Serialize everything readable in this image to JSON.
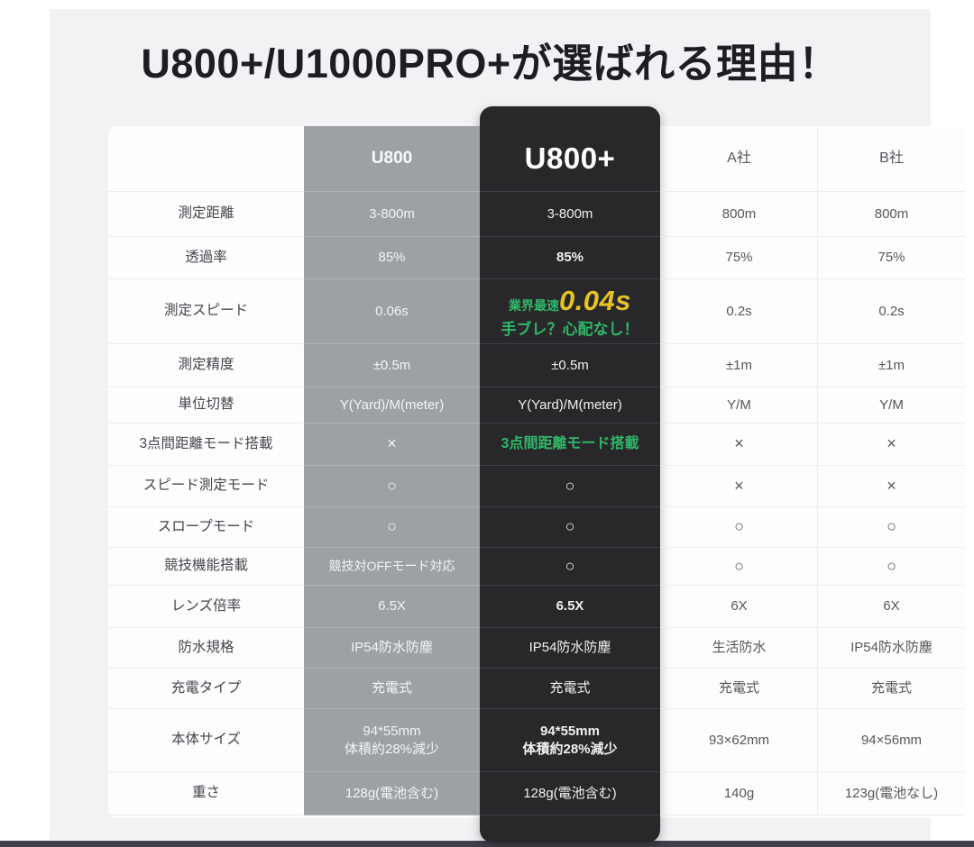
{
  "page": {
    "title": "U800+/U1000PRO+が選ばれる理由！"
  },
  "colors": {
    "accent_green": "#2fb767",
    "accent_yellow": "#e6c324",
    "column_u800_bg": "#9ba1a4",
    "column_u800plus_bg": "#28282b",
    "promo_bg": "#f2f2f5"
  },
  "table": {
    "headers": {
      "u800": "U800",
      "u800plus": "U800+",
      "companyA": "A社",
      "companyB": "B社"
    },
    "rows": [
      {
        "label": "測定距離",
        "u800": "3-800m",
        "u800plus": "3-800m",
        "a": "800m",
        "b": "800m"
      },
      {
        "label": "透過率",
        "u800": "85%",
        "u800plus": "85%",
        "a": "75%",
        "b": "75%"
      },
      {
        "label": "測定スピード",
        "u800": "0.06s",
        "u800plus_prefix": "業界最速",
        "u800plus_value": "0.04s",
        "u800plus_note": "手ブレ？心配なし！",
        "a": "0.2s",
        "b": "0.2s"
      },
      {
        "label": "測定精度",
        "u800": "±0.5m",
        "u800plus": "±0.5m",
        "a": "±1m",
        "b": "±1m"
      },
      {
        "label": "単位切替",
        "u800": "Y(Yard)/M(meter)",
        "u800plus": "Y(Yard)/M(meter)",
        "a": "Y/M",
        "b": "Y/M"
      },
      {
        "label": "3点間距離モード搭載",
        "u800": "×",
        "u800plus": "3点間距離モード搭載",
        "a": "×",
        "b": "×"
      },
      {
        "label": "スピード測定モード",
        "u800": "○",
        "u800plus": "○",
        "a": "×",
        "b": "×"
      },
      {
        "label": "スロープモード",
        "u800": "○",
        "u800plus": "○",
        "a": "○",
        "b": "○"
      },
      {
        "label": "競技機能搭載",
        "u800": "競技対OFFモード対応",
        "u800plus": "○",
        "a": "○",
        "b": "○"
      },
      {
        "label": "レンズ倍率",
        "u800": "6.5X",
        "u800plus": "6.5X",
        "a": "6X",
        "b": "6X"
      },
      {
        "label": "防水規格",
        "u800": "IP54防水防塵",
        "u800plus": "IP54防水防塵",
        "a": "生活防水",
        "b": "IP54防水防塵"
      },
      {
        "label": "充電タイプ",
        "u800": "充電式",
        "u800plus": "充電式",
        "a": "充電式",
        "b": "充電式"
      },
      {
        "label": "本体サイズ",
        "u800_line1": "94*55mm",
        "u800_line2": "体積約28%減少",
        "u800plus_line1": "94*55mm",
        "u800plus_line2": "体積約28%減少",
        "a": "93×62mm",
        "b": "94×56mm"
      },
      {
        "label": "重さ",
        "u800": "128g(電池含む)",
        "u800plus": "128g(電池含む)",
        "a": "140g",
        "b": "123g(電池なし)"
      }
    ]
  }
}
